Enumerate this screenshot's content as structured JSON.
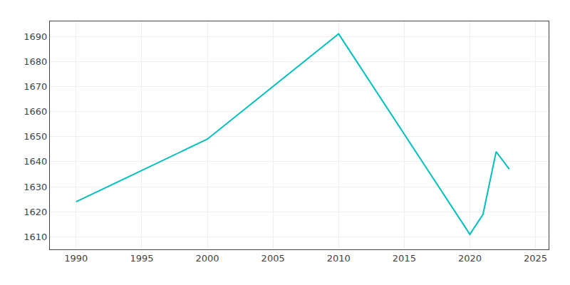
{
  "chart_data": {
    "type": "line",
    "x": [
      1990,
      2000,
      2010,
      2020,
      2021,
      2022,
      2023
    ],
    "values": [
      1624,
      1649,
      1691,
      1611,
      1619,
      1644,
      1637
    ],
    "color": "#00BFBF",
    "xlim": [
      1988,
      2026
    ],
    "ylim": [
      1605,
      1696
    ],
    "xticks": [
      1990,
      1995,
      2000,
      2005,
      2010,
      2015,
      2020,
      2025
    ],
    "yticks": [
      1610,
      1620,
      1630,
      1640,
      1650,
      1660,
      1670,
      1680,
      1690
    ],
    "grid": true
  }
}
